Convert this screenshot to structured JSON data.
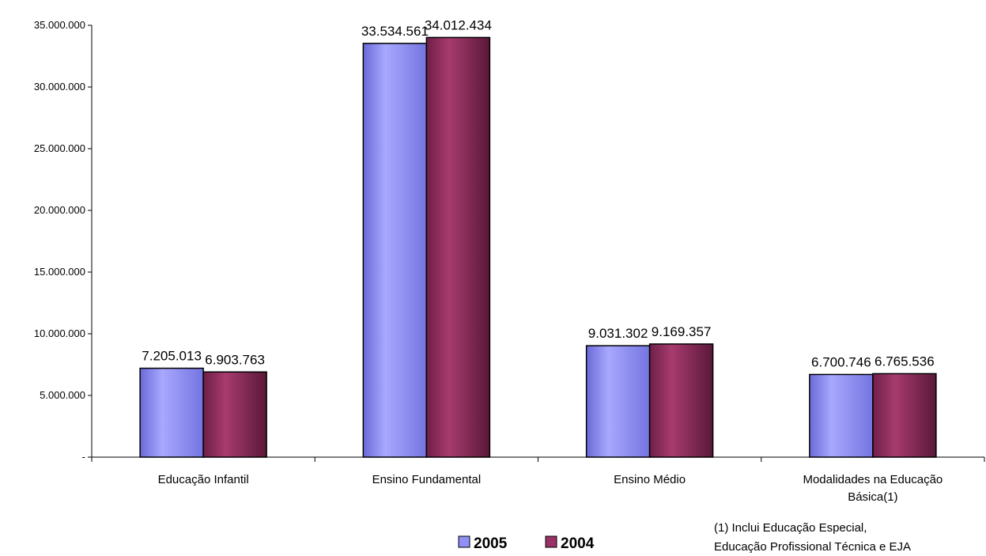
{
  "chart_data": {
    "type": "bar",
    "categories": [
      [
        "Educação Infantil"
      ],
      [
        "Ensino Fundamental"
      ],
      [
        "Ensino Médio"
      ],
      [
        "Modalidades na Educação",
        "Básica(1)"
      ]
    ],
    "series": [
      {
        "name": "2005",
        "values": [
          7205013,
          33534561,
          9031302,
          6700746
        ],
        "labels": [
          "7.205.013",
          "33.534.561",
          "9.031.302",
          "6.700.746"
        ],
        "color": "#8f8ff5"
      },
      {
        "name": "2004",
        "values": [
          6903763,
          34012434,
          9169357,
          6765536
        ],
        "labels": [
          "6.903.763",
          "34.012.434",
          "9.169.357",
          "6.765.536"
        ],
        "color": "#993366"
      }
    ],
    "ylim": [
      0,
      35000000
    ],
    "yticks": [
      0,
      5000000,
      10000000,
      15000000,
      20000000,
      25000000,
      30000000,
      35000000
    ],
    "ytick_labels": [
      "-",
      "5.000.000",
      "10.000.000",
      "15.000.000",
      "20.000.000",
      "25.000.000",
      "30.000.000",
      "35.000.000"
    ],
    "legend_position": "bottom",
    "grid": false,
    "footnote": [
      "(1) Inclui Educação Especial,",
      "Educação Profissional Técnica e EJA"
    ]
  }
}
